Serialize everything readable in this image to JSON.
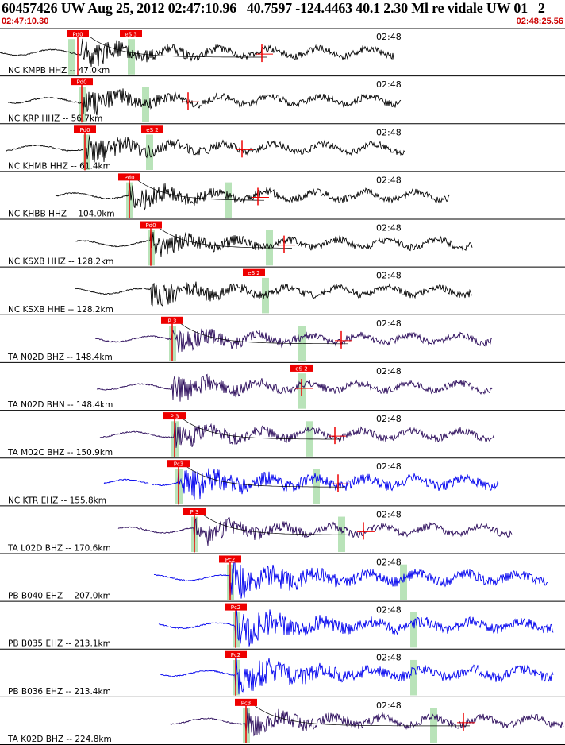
{
  "header": {
    "title": "60457426 UW Aug 25, 2012 02:47:10.96   40.7597 -124.4463 40.1 2.30 Ml re vidale UW 01   2",
    "start_time": "02:47:10.30",
    "end_time": "02:48:25.56"
  },
  "time_marker_label": "02:48",
  "colors": {
    "trace_black": "#000000",
    "trace_purple": "#2a0a5a",
    "trace_blue": "#0000ee",
    "pick_red": "#ee0000",
    "window_green": "#b9e3b9",
    "curve": "#000000"
  },
  "traces": [
    {
      "label": "NC KMPB HHZ -- 47.0km",
      "color": "black",
      "p_label": "Pd0",
      "s_label": "eS 3",
      "p": 98,
      "s": 165,
      "start": 0,
      "end": 496,
      "onset": 103,
      "green": [
        90,
        165
      ],
      "mark": 330,
      "curve": 1,
      "amp": 1.0
    },
    {
      "label": "NC KRP HHZ -- 56.7km",
      "color": "black",
      "p_label": "Pd0",
      "s_label": "",
      "p": 103,
      "s": 0,
      "start": 10,
      "end": 505,
      "onset": 105,
      "green": [
        103,
        183
      ],
      "mark": 237,
      "curve": 0,
      "amp": 1.0
    },
    {
      "label": "NC KHMB HHZ -- 61.4km",
      "color": "black",
      "p_label": "Pd0",
      "s_label": "eS 2",
      "p": 107,
      "s": 192,
      "start": 8,
      "end": 510,
      "onset": 110,
      "green": [
        108,
        188
      ],
      "mark": 305,
      "curve": 0,
      "amp": 1.0
    },
    {
      "label": "NC KHBB HHZ -- 104.0km",
      "color": "black",
      "p_label": "Pd0",
      "s_label": "",
      "p": 163,
      "s": 0,
      "start": 70,
      "end": 567,
      "onset": 163,
      "green": [
        163,
        287
      ],
      "mark": 325,
      "curve": 1,
      "amp": 1.0
    },
    {
      "label": "NC KSXB HHZ -- 128.2km",
      "color": "black",
      "p_label": "Pd0",
      "s_label": "",
      "p": 190,
      "s": 0,
      "start": 94,
      "end": 595,
      "onset": 190,
      "green": [
        190,
        339
      ],
      "mark": 358,
      "curve": 1,
      "amp": 1.0
    },
    {
      "label": "NC KSXB HHE -- 128.2km",
      "color": "black",
      "p_label": "",
      "s_label": "eS 2",
      "p": 0,
      "s": 320,
      "start": 94,
      "end": 595,
      "onset": 190,
      "green": [
        334
      ],
      "mark": 0,
      "curve": 0,
      "amp": 1.0
    },
    {
      "label": "TA N02D BHZ -- 148.4km",
      "color": "purple",
      "p_label": "P 3",
      "s_label": "",
      "p": 217,
      "s": 0,
      "start": 120,
      "end": 620,
      "onset": 217,
      "green": [
        217,
        380
      ],
      "mark": 430,
      "curve": 1,
      "amp": 1.0
    },
    {
      "label": "TA N02D BHN -- 148.4km",
      "color": "purple",
      "p_label": "",
      "s_label": "eS 2",
      "p": 0,
      "s": 380,
      "start": 122,
      "end": 620,
      "onset": 217,
      "green": [
        380
      ],
      "mark": 380,
      "curve": 0,
      "amp": 1.0
    },
    {
      "label": "TA M02C BHZ -- 150.9km",
      "color": "purple",
      "p_label": "P 3",
      "s_label": "",
      "p": 220,
      "s": 0,
      "start": 126,
      "end": 623,
      "onset": 220,
      "green": [
        220,
        389
      ],
      "mark": 422,
      "curve": 1,
      "amp": 1.0
    },
    {
      "label": "NC KTR EHZ -- 155.8km",
      "color": "blue",
      "p_label": "Pc3",
      "s_label": "",
      "p": 225,
      "s": 0,
      "start": 131,
      "end": 628,
      "onset": 225,
      "green": [
        225,
        398
      ],
      "mark": 426,
      "curve": 1,
      "amp": 1.0
    },
    {
      "label": "TA L02D BHZ -- 170.6km",
      "color": "purple",
      "p_label": "P 3",
      "s_label": "",
      "p": 245,
      "s": 0,
      "start": 149,
      "end": 645,
      "onset": 245,
      "green": [
        245,
        430
      ],
      "mark": 458,
      "curve": 1,
      "amp": 1.0
    },
    {
      "label": "PB B040 EHZ -- 207.0km",
      "color": "blue",
      "p_label": "Pc2",
      "s_label": "",
      "p": 290,
      "s": 0,
      "start": 194,
      "end": 690,
      "onset": 290,
      "green": [
        290,
        508
      ],
      "mark": 0,
      "curve": 0,
      "amp": 1.0
    },
    {
      "label": "PB B035 EHZ -- 213.1km",
      "color": "blue",
      "p_label": "Pc2",
      "s_label": "",
      "p": 297,
      "s": 0,
      "start": 200,
      "end": 697,
      "onset": 297,
      "green": [
        297,
        521
      ],
      "mark": 0,
      "curve": 0,
      "amp": 1.0
    },
    {
      "label": "PB B036 EHZ -- 213.4km",
      "color": "blue",
      "p_label": "Pc2",
      "s_label": "",
      "p": 297,
      "s": 0,
      "start": 202,
      "end": 697,
      "onset": 297,
      "green": [
        297,
        521
      ],
      "mark": 0,
      "curve": 0,
      "amp": 1.0
    },
    {
      "label": "TA K02D BHZ -- 224.8km",
      "color": "purple",
      "p_label": "Pc3",
      "s_label": "",
      "p": 310,
      "s": 0,
      "start": 214,
      "end": 710,
      "onset": 310,
      "green": [
        310,
        546
      ],
      "mark": 584,
      "curve": 1,
      "amp": 1.0
    }
  ]
}
